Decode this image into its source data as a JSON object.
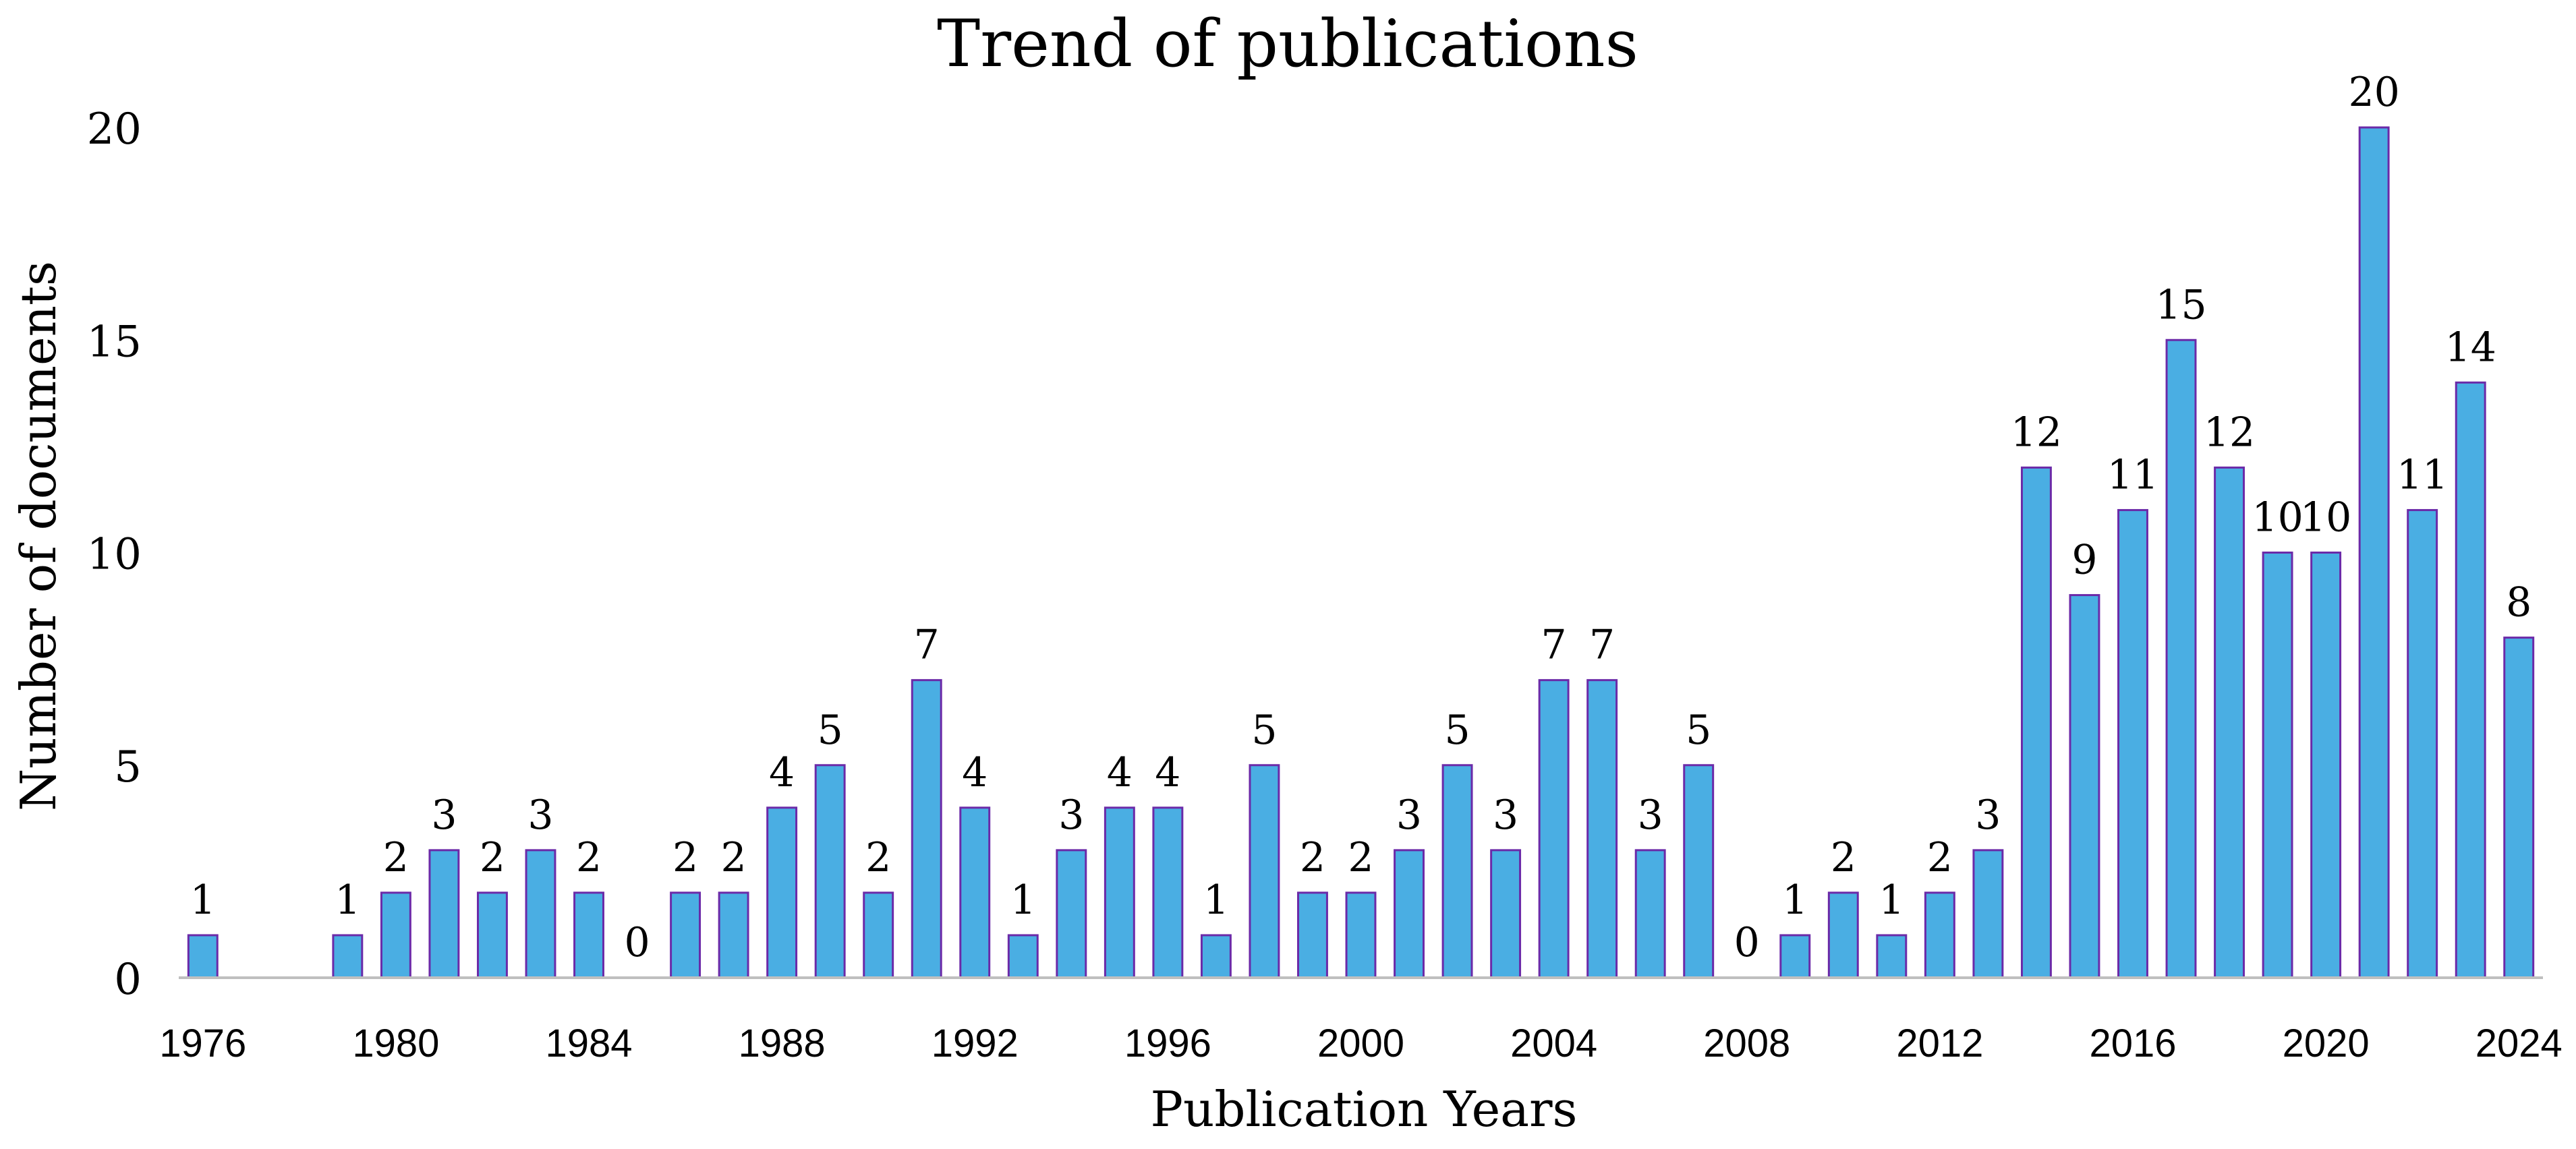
{
  "chart_data": {
    "type": "bar",
    "title": "Trend of publications",
    "xlabel": "Publication Years",
    "ylabel": "Number of documents",
    "ylim": [
      0,
      20
    ],
    "yticks": [
      0,
      5,
      10,
      15,
      20
    ],
    "grid": false,
    "legend": "none",
    "categories": [
      "1976",
      "1977",
      "1978",
      "1979",
      "1980",
      "1981",
      "1982",
      "1983",
      "1984",
      "1985",
      "1986",
      "1987",
      "1988",
      "1989",
      "1990",
      "1991",
      "1992",
      "1993",
      "1994",
      "1995",
      "1996",
      "1997",
      "1998",
      "1999",
      "2000",
      "2001",
      "2002",
      "2003",
      "2004",
      "2005",
      "2006",
      "2007",
      "2008",
      "2009",
      "2010",
      "2011",
      "2012",
      "2013",
      "2014",
      "2015",
      "2016",
      "2017",
      "2018",
      "2019",
      "2020",
      "2021",
      "2022",
      "2023",
      "2024"
    ],
    "values": [
      1,
      null,
      null,
      1,
      2,
      3,
      2,
      3,
      2,
      0,
      2,
      2,
      4,
      5,
      2,
      7,
      4,
      1,
      3,
      4,
      4,
      1,
      5,
      2,
      2,
      3,
      5,
      3,
      7,
      7,
      3,
      5,
      0,
      1,
      2,
      1,
      2,
      3,
      12,
      9,
      11,
      15,
      12,
      10,
      10,
      20,
      11,
      14,
      8
    ],
    "x_tick_labels": [
      "1976",
      "1980",
      "1984",
      "1988",
      "1992",
      "1996",
      "2000",
      "2004",
      "2008",
      "2012",
      "2016",
      "2020",
      "2024"
    ],
    "colors": {
      "bar_fill": "#4AAEE3",
      "bar_stroke": "#6B2AA8",
      "axis": "#BFBFBF",
      "text": "#000000"
    }
  }
}
